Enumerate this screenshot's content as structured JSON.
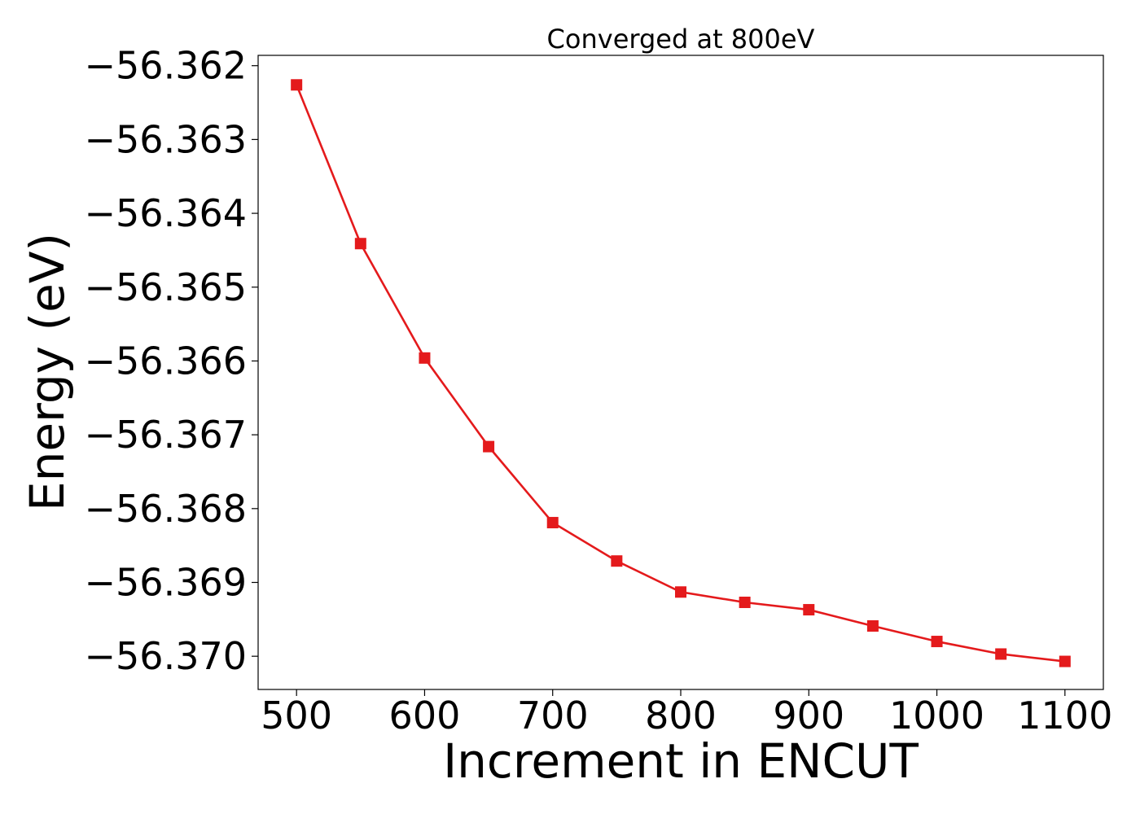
{
  "chart_data": {
    "type": "line",
    "title": "Converged at 800eV",
    "xlabel": "Increment in ENCUT",
    "ylabel": "Energy (eV)",
    "xlim": [
      470,
      1130
    ],
    "ylim": [
      -56.37045,
      -56.36186
    ],
    "xticks": [
      500,
      600,
      700,
      800,
      900,
      1000,
      1100
    ],
    "xtick_labels": [
      "500",
      "600",
      "700",
      "800",
      "900",
      "1000",
      "1100"
    ],
    "yticks": [
      -56.362,
      -56.363,
      -56.364,
      -56.365,
      -56.366,
      -56.367,
      -56.368,
      -56.369,
      -56.37
    ],
    "ytick_labels": [
      "−56.362",
      "−56.363",
      "−56.364",
      "−56.365",
      "−56.366",
      "−56.367",
      "−56.368",
      "−56.369",
      "−56.370"
    ],
    "grid": false,
    "series": [
      {
        "color": "#e41a1c",
        "marker": "square",
        "x": [
          500,
          550,
          600,
          650,
          700,
          750,
          800,
          850,
          900,
          950,
          1000,
          1050,
          1100
        ],
        "y": [
          -56.36226,
          -56.36441,
          -56.36596,
          -56.36716,
          -56.36819,
          -56.36871,
          -56.36913,
          -56.36927,
          -56.36937,
          -56.36959,
          -56.3698,
          -56.36997,
          -56.37007
        ]
      }
    ]
  }
}
